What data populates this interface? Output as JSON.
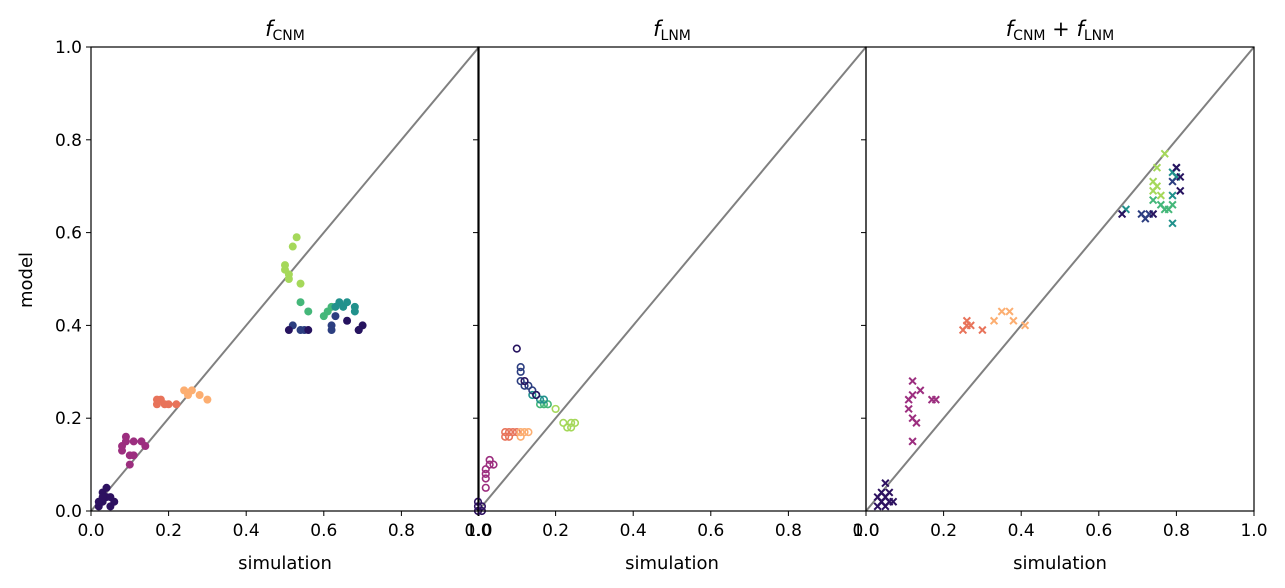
{
  "figure": {
    "ylabel": "model",
    "colors": {
      "diagonal": "#808080",
      "axes": "#000000",
      "background": "#ffffff"
    }
  },
  "chart_data": [
    {
      "type": "scatter",
      "title": {
        "main": "f",
        "sub": "CNM"
      },
      "xlabel": "simulation",
      "ylabel": "model",
      "xlim": [
        0,
        1
      ],
      "ylim": [
        0,
        1
      ],
      "xticks": [
        "0.0",
        "0.2",
        "0.4",
        "0.6",
        "0.8",
        "1.0"
      ],
      "yticks": [
        "0.0",
        "0.2",
        "0.4",
        "0.6",
        "0.8",
        "1.0"
      ],
      "marker": "filled-circle",
      "diagonal": [
        [
          0,
          0
        ],
        [
          1,
          1
        ]
      ],
      "series": [
        {
          "name": "group-1",
          "color": "#2d1160",
          "points": [
            [
              0.02,
              0.01
            ],
            [
              0.03,
              0.02
            ],
            [
              0.04,
              0.03
            ],
            [
              0.05,
              0.01
            ],
            [
              0.03,
              0.04
            ],
            [
              0.02,
              0.02
            ],
            [
              0.06,
              0.02
            ],
            [
              0.04,
              0.05
            ],
            [
              0.05,
              0.03
            ],
            [
              0.03,
              0.03
            ]
          ]
        },
        {
          "name": "group-2",
          "color": "#9c2e7f",
          "points": [
            [
              0.08,
              0.14
            ],
            [
              0.09,
              0.15
            ],
            [
              0.1,
              0.12
            ],
            [
              0.09,
              0.16
            ],
            [
              0.11,
              0.15
            ],
            [
              0.13,
              0.15
            ],
            [
              0.14,
              0.14
            ],
            [
              0.1,
              0.1
            ],
            [
              0.11,
              0.12
            ],
            [
              0.08,
              0.13
            ]
          ]
        },
        {
          "name": "group-3",
          "color": "#e8735a",
          "points": [
            [
              0.17,
              0.23
            ],
            [
              0.18,
              0.24
            ],
            [
              0.2,
              0.23
            ],
            [
              0.22,
              0.23
            ],
            [
              0.17,
              0.24
            ],
            [
              0.19,
              0.23
            ]
          ]
        },
        {
          "name": "group-4",
          "color": "#fcae71",
          "points": [
            [
              0.24,
              0.26
            ],
            [
              0.26,
              0.26
            ],
            [
              0.28,
              0.25
            ],
            [
              0.3,
              0.24
            ],
            [
              0.25,
              0.25
            ]
          ]
        },
        {
          "name": "group-5",
          "color": "#a5d85a",
          "points": [
            [
              0.5,
              0.52
            ],
            [
              0.5,
              0.53
            ],
            [
              0.51,
              0.51
            ],
            [
              0.52,
              0.57
            ],
            [
              0.53,
              0.59
            ],
            [
              0.51,
              0.5
            ],
            [
              0.54,
              0.49
            ]
          ]
        },
        {
          "name": "group-6",
          "color": "#44b779",
          "points": [
            [
              0.54,
              0.45
            ],
            [
              0.56,
              0.43
            ],
            [
              0.6,
              0.42
            ],
            [
              0.61,
              0.43
            ],
            [
              0.62,
              0.44
            ]
          ]
        },
        {
          "name": "group-7",
          "color": "#21918c",
          "points": [
            [
              0.63,
              0.44
            ],
            [
              0.64,
              0.45
            ],
            [
              0.65,
              0.44
            ],
            [
              0.66,
              0.45
            ],
            [
              0.68,
              0.44
            ],
            [
              0.68,
              0.43
            ]
          ]
        },
        {
          "name": "group-8",
          "color": "#2c3e80",
          "points": [
            [
              0.52,
              0.4
            ],
            [
              0.54,
              0.39
            ],
            [
              0.55,
              0.39
            ],
            [
              0.62,
              0.39
            ],
            [
              0.62,
              0.4
            ],
            [
              0.63,
              0.42
            ]
          ]
        },
        {
          "name": "group-9",
          "color": "#26135f",
          "points": [
            [
              0.51,
              0.39
            ],
            [
              0.56,
              0.39
            ],
            [
              0.66,
              0.41
            ],
            [
              0.69,
              0.39
            ],
            [
              0.7,
              0.4
            ],
            [
              0.69,
              0.39
            ]
          ]
        }
      ]
    },
    {
      "type": "scatter",
      "title": {
        "main": "f",
        "sub": "LNM"
      },
      "xlabel": "simulation",
      "ylabel": "",
      "xlim": [
        0,
        1
      ],
      "ylim": [
        0,
        1
      ],
      "xticks": [
        "0.0",
        "0.2",
        "0.4",
        "0.6",
        "0.8",
        "1.0"
      ],
      "yticks": [],
      "marker": "open-circle",
      "diagonal": [
        [
          0,
          0
        ],
        [
          1,
          1
        ]
      ],
      "series": [
        {
          "name": "group-1",
          "color": "#2d1160",
          "points": [
            [
              0.0,
              0.01
            ],
            [
              0.01,
              0.0
            ],
            [
              0.0,
              0.0
            ],
            [
              0.01,
              0.01
            ],
            [
              0.0,
              0.02
            ]
          ]
        },
        {
          "name": "group-2",
          "color": "#9c2e7f",
          "points": [
            [
              0.02,
              0.05
            ],
            [
              0.02,
              0.08
            ],
            [
              0.02,
              0.09
            ],
            [
              0.03,
              0.1
            ],
            [
              0.03,
              0.11
            ],
            [
              0.04,
              0.1
            ],
            [
              0.02,
              0.07
            ]
          ]
        },
        {
          "name": "group-3",
          "color": "#e8735a",
          "points": [
            [
              0.07,
              0.17
            ],
            [
              0.08,
              0.17
            ],
            [
              0.09,
              0.17
            ],
            [
              0.1,
              0.17
            ],
            [
              0.07,
              0.16
            ],
            [
              0.08,
              0.16
            ]
          ]
        },
        {
          "name": "group-4",
          "color": "#fcae71",
          "points": [
            [
              0.11,
              0.17
            ],
            [
              0.12,
              0.17
            ],
            [
              0.13,
              0.17
            ],
            [
              0.11,
              0.16
            ]
          ]
        },
        {
          "name": "group-5",
          "color": "#a5d85a",
          "points": [
            [
              0.22,
              0.19
            ],
            [
              0.23,
              0.18
            ],
            [
              0.24,
              0.18
            ],
            [
              0.25,
              0.19
            ],
            [
              0.24,
              0.19
            ],
            [
              0.2,
              0.22
            ]
          ]
        },
        {
          "name": "group-6",
          "color": "#44b779",
          "points": [
            [
              0.16,
              0.23
            ],
            [
              0.17,
              0.23
            ],
            [
              0.18,
              0.23
            ]
          ]
        },
        {
          "name": "group-7",
          "color": "#21918c",
          "points": [
            [
              0.14,
              0.25
            ],
            [
              0.15,
              0.25
            ],
            [
              0.16,
              0.24
            ],
            [
              0.17,
              0.24
            ]
          ]
        },
        {
          "name": "group-8",
          "color": "#2c3e80",
          "points": [
            [
              0.11,
              0.28
            ],
            [
              0.12,
              0.27
            ],
            [
              0.13,
              0.27
            ],
            [
              0.14,
              0.26
            ],
            [
              0.11,
              0.3
            ],
            [
              0.11,
              0.31
            ]
          ]
        },
        {
          "name": "group-9",
          "color": "#26135f",
          "points": [
            [
              0.1,
              0.35
            ],
            [
              0.12,
              0.28
            ],
            [
              0.15,
              0.25
            ]
          ]
        }
      ]
    },
    {
      "type": "scatter",
      "title": {
        "main": "f",
        "sub": "CNM",
        "plus": "+",
        "main2": "f",
        "sub2": "LNM"
      },
      "xlabel": "simulation",
      "ylabel": "",
      "xlim": [
        0,
        1
      ],
      "ylim": [
        0,
        1
      ],
      "xticks": [
        "0.0",
        "0.2",
        "0.4",
        "0.6",
        "0.8",
        "1.0"
      ],
      "yticks": [],
      "marker": "x",
      "diagonal": [
        [
          0,
          0
        ],
        [
          1,
          1
        ]
      ],
      "series": [
        {
          "name": "group-1",
          "color": "#2d1160",
          "points": [
            [
              0.03,
              0.01
            ],
            [
              0.04,
              0.02
            ],
            [
              0.05,
              0.03
            ],
            [
              0.06,
              0.02
            ],
            [
              0.04,
              0.04
            ],
            [
              0.05,
              0.06
            ],
            [
              0.03,
              0.03
            ],
            [
              0.06,
              0.04
            ],
            [
              0.07,
              0.02
            ],
            [
              0.05,
              0.01
            ]
          ]
        },
        {
          "name": "group-2",
          "color": "#9c2e7f",
          "points": [
            [
              0.11,
              0.22
            ],
            [
              0.11,
              0.24
            ],
            [
              0.12,
              0.25
            ],
            [
              0.12,
              0.28
            ],
            [
              0.14,
              0.26
            ],
            [
              0.13,
              0.19
            ],
            [
              0.12,
              0.2
            ],
            [
              0.12,
              0.15
            ],
            [
              0.17,
              0.24
            ],
            [
              0.18,
              0.24
            ]
          ]
        },
        {
          "name": "group-3",
          "color": "#e8735a",
          "points": [
            [
              0.25,
              0.39
            ],
            [
              0.26,
              0.4
            ],
            [
              0.26,
              0.41
            ],
            [
              0.27,
              0.4
            ],
            [
              0.3,
              0.39
            ]
          ]
        },
        {
          "name": "group-4",
          "color": "#fcae71",
          "points": [
            [
              0.33,
              0.41
            ],
            [
              0.35,
              0.43
            ],
            [
              0.37,
              0.43
            ],
            [
              0.38,
              0.41
            ],
            [
              0.41,
              0.4
            ]
          ]
        },
        {
          "name": "group-5",
          "color": "#a5d85a",
          "points": [
            [
              0.74,
              0.71
            ],
            [
              0.75,
              0.7
            ],
            [
              0.76,
              0.68
            ],
            [
              0.77,
              0.77
            ],
            [
              0.75,
              0.74
            ],
            [
              0.74,
              0.69
            ]
          ]
        },
        {
          "name": "group-6",
          "color": "#44b779",
          "points": [
            [
              0.74,
              0.67
            ],
            [
              0.76,
              0.66
            ],
            [
              0.77,
              0.65
            ],
            [
              0.78,
              0.65
            ],
            [
              0.79,
              0.66
            ]
          ]
        },
        {
          "name": "group-7",
          "color": "#21918c",
          "points": [
            [
              0.67,
              0.65
            ],
            [
              0.79,
              0.62
            ],
            [
              0.79,
              0.68
            ],
            [
              0.79,
              0.73
            ],
            [
              0.8,
              0.72
            ]
          ]
        },
        {
          "name": "group-8",
          "color": "#2c3e80",
          "points": [
            [
              0.71,
              0.64
            ],
            [
              0.72,
              0.63
            ],
            [
              0.73,
              0.64
            ],
            [
              0.8,
              0.74
            ],
            [
              0.79,
              0.71
            ]
          ]
        },
        {
          "name": "group-9",
          "color": "#26135f",
          "points": [
            [
              0.66,
              0.64
            ],
            [
              0.74,
              0.64
            ],
            [
              0.8,
              0.74
            ],
            [
              0.81,
              0.72
            ],
            [
              0.81,
              0.69
            ]
          ]
        }
      ]
    }
  ]
}
